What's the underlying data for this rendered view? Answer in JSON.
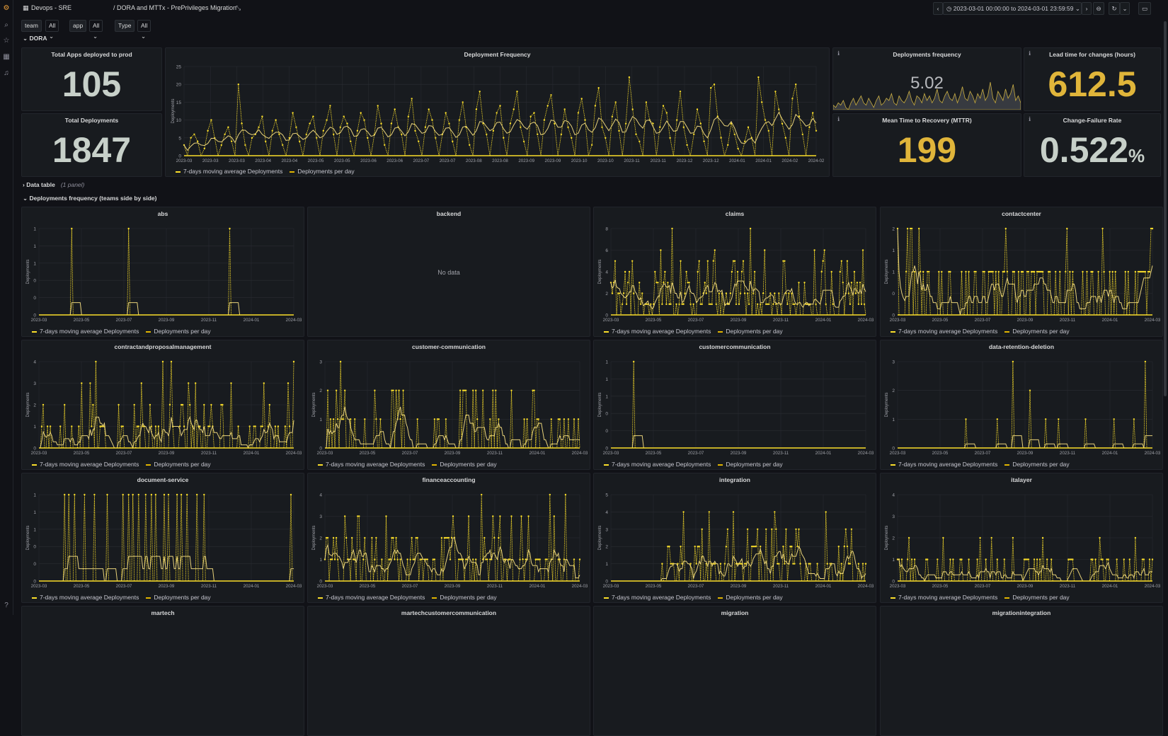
{
  "breadcrumb": {
    "folder": "Devops - SRE",
    "dashboard": "/ DORA and MTTx - PrePrivileges Migration"
  },
  "time_range": "2023-03-01 00:00:00 to 2024-03-01 23:59:59",
  "variables": [
    {
      "label": "team",
      "value": "All"
    },
    {
      "label": "app",
      "value": "All"
    },
    {
      "label": "Type",
      "value": "All"
    }
  ],
  "rows": {
    "dora": "DORA",
    "data_table": "Data table",
    "data_table_meta": "(1 panel)",
    "teams": "Deployments frequency (teams side by side)"
  },
  "stats": {
    "total_apps": {
      "title": "Total Apps deployed to prod",
      "value": "105",
      "color": "#c7d0c9"
    },
    "total_deployments": {
      "title": "Total Deployments",
      "value": "1847",
      "color": "#c7d0c9"
    },
    "deploy_freq": {
      "title": "Deployments frequency",
      "value": "5.02"
    },
    "lead_time": {
      "title": "Lead time for changes (hours)",
      "value": "612.5",
      "color": "#e0b53a"
    },
    "mttr": {
      "title": "Mean Time to Recovery (MTTR)",
      "value": "199",
      "color": "#e0b53a"
    },
    "cfr": {
      "title": "Change-Failure Rate",
      "value": "0.522",
      "unit": "%",
      "color": "#c7d0c9"
    }
  },
  "legend": {
    "avg": "7-days moving average Deployments",
    "per_day": "Deployments per day"
  },
  "no_data": "No data",
  "colors": {
    "series": "#fade2a",
    "avg": "#e8d27a",
    "grid": "#2a2d33",
    "tick": "#9fa1a8"
  },
  "chart_data": [
    {
      "type": "line",
      "title": "Deployment Frequency",
      "ylabel": "Deployments",
      "ylim": [
        0,
        25
      ],
      "yticks": [
        0,
        5,
        10,
        15,
        20,
        25
      ],
      "xticks": [
        "2023-03",
        "2023-03",
        "2023-03",
        "2023-04",
        "2023-04",
        "2023-05",
        "2023-05",
        "2023-06",
        "2023-06",
        "2023-07",
        "2023-07",
        "2023-08",
        "2023-08",
        "2023-09",
        "2023-09",
        "2023-10",
        "2023-10",
        "2023-11",
        "2023-11",
        "2023-12",
        "2023-12",
        "2024-01",
        "2024-01",
        "2024-02",
        "2024-02"
      ],
      "series": [
        {
          "name": "7-days moving average Deployments"
        },
        {
          "name": "Deployments per day",
          "values": [
            3,
            0,
            5,
            6,
            4,
            0,
            2,
            7,
            10,
            5,
            0,
            3,
            6,
            8,
            4,
            0,
            20,
            9,
            3,
            0,
            5,
            6,
            8,
            11,
            4,
            0,
            7,
            10,
            6,
            3,
            0,
            5,
            12,
            8,
            4,
            0,
            6,
            9,
            11,
            5,
            0,
            7,
            10,
            14,
            6,
            0,
            8,
            11,
            9,
            4,
            0,
            7,
            12,
            10,
            5,
            0,
            6,
            14,
            9,
            3,
            0,
            9,
            13,
            8,
            6,
            0,
            11,
            16,
            7,
            4,
            0,
            8,
            13,
            10,
            5,
            0,
            6,
            12,
            9,
            4,
            0,
            10,
            15,
            8,
            3,
            0,
            13,
            18,
            9,
            6,
            0,
            7,
            12,
            14,
            5,
            0,
            9,
            13,
            18,
            8,
            4,
            0,
            11,
            12,
            6,
            0,
            10,
            14,
            17,
            9,
            0,
            6,
            13,
            8,
            5,
            0,
            12,
            16,
            10,
            0,
            3,
            14,
            19,
            8,
            5,
            0,
            11,
            15,
            7,
            0,
            9,
            22,
            13,
            6,
            4,
            0,
            15,
            10,
            9,
            0,
            8,
            14,
            12,
            5,
            0,
            10,
            18,
            8,
            3,
            0,
            6,
            13,
            9,
            4,
            0,
            19,
            20,
            11,
            5,
            0,
            3,
            9,
            6,
            2,
            0,
            4,
            8,
            5,
            0,
            22,
            15,
            10,
            7,
            0,
            18,
            13,
            9,
            5,
            0,
            16,
            20,
            11,
            6,
            0,
            8,
            12,
            7
          ]
        }
      ]
    },
    {
      "type": "line",
      "title": "Deployments frequency",
      "sparkline": true,
      "values": [
        2,
        1,
        3,
        2,
        4,
        1,
        0,
        3,
        5,
        2,
        4,
        6,
        3,
        2,
        5,
        3,
        1,
        4,
        6,
        2,
        3,
        5,
        4,
        7,
        3,
        2,
        6,
        4,
        3,
        5,
        8,
        4,
        2,
        6,
        5,
        3,
        7,
        4,
        6,
        3,
        5,
        9,
        4,
        3,
        6,
        8,
        5,
        4,
        7,
        3,
        6,
        10,
        5,
        4,
        8,
        6,
        3,
        7,
        5,
        9,
        4,
        6,
        12,
        5,
        3,
        8,
        6,
        4,
        9,
        5,
        7,
        11,
        4,
        6,
        3
      ]
    },
    {
      "type": "line",
      "title": "abs",
      "ylim": [
        0,
        1
      ],
      "yticks": [
        0,
        0.2,
        0.4,
        0.6,
        0.8,
        1
      ],
      "yticklabels": [
        "0",
        "0",
        "0",
        "1",
        "1",
        "1"
      ],
      "xticks": [
        "2023-03",
        "2023-05",
        "2023-07",
        "2023-09",
        "2023-11",
        "2024-01",
        "2024-03"
      ],
      "spikes": [
        [
          0.13,
          1
        ],
        [
          0.35,
          1
        ],
        [
          0.75,
          1
        ]
      ]
    },
    {
      "type": "line",
      "title": "backend",
      "nodata": true
    },
    {
      "type": "line",
      "title": "claims",
      "ylim": [
        0,
        8
      ],
      "yticks": [
        0,
        2,
        4,
        6,
        8
      ],
      "xticks": [
        "2023-03",
        "2023-05",
        "2023-07",
        "2023-09",
        "2023-11",
        "2024-01",
        "2024-03"
      ],
      "density": 0.75,
      "maxv": 8,
      "seed": 11
    },
    {
      "type": "line",
      "title": "contactcenter",
      "ylim": [
        0,
        2
      ],
      "yticks": [
        0,
        0.5,
        1,
        1.5,
        2
      ],
      "yticklabels": [
        "0",
        "0",
        "1",
        "1",
        "2"
      ],
      "xticks": [
        "2023-03",
        "2023-05",
        "2023-07",
        "2023-09",
        "2023-11",
        "2024-01",
        "2024-03"
      ],
      "density": 0.45,
      "maxv": 2,
      "seed": 23
    },
    {
      "type": "line",
      "title": "contractandproposalmanagement",
      "ylim": [
        0,
        4
      ],
      "yticks": [
        0,
        1,
        2,
        3,
        4
      ],
      "xticks": [
        "2023-03",
        "2023-05",
        "2023-07",
        "2023-09",
        "2023-11",
        "2024-01",
        "2024-03"
      ],
      "density": 0.35,
      "maxv": 4,
      "seed": 31
    },
    {
      "type": "line",
      "title": "customer-communication",
      "ylim": [
        0,
        3
      ],
      "yticks": [
        0,
        1,
        2,
        3
      ],
      "xticks": [
        "2023-03",
        "2023-05",
        "2023-07",
        "2023-09",
        "2023-11",
        "2024-01",
        "2024-03"
      ],
      "density": 0.35,
      "maxv": 3,
      "seed": 41
    },
    {
      "type": "line",
      "title": "customercommunication",
      "ylim": [
        0,
        1
      ],
      "yticks": [
        0,
        0.2,
        0.4,
        0.6,
        0.8,
        1
      ],
      "yticklabels": [
        "0",
        "0",
        "0",
        "1",
        "1",
        "1"
      ],
      "xticks": [
        "2023-03",
        "2023-05",
        "2023-07",
        "2023-09",
        "2023-11",
        "2024-01",
        "2024-03"
      ],
      "spikes": [
        [
          0.09,
          1
        ]
      ]
    },
    {
      "type": "line",
      "title": "data-retention-deletion",
      "ylim": [
        0,
        3
      ],
      "yticks": [
        0,
        1,
        2,
        3
      ],
      "xticks": [
        "2023-03",
        "2023-05",
        "2023-07",
        "2023-09",
        "2023-11",
        "2024-01",
        "2024-03"
      ],
      "spikes": [
        [
          0.27,
          1
        ],
        [
          0.39,
          1
        ],
        [
          0.45,
          3
        ],
        [
          0.52,
          2
        ],
        [
          0.58,
          1
        ],
        [
          0.63,
          1
        ],
        [
          0.74,
          1
        ],
        [
          0.85,
          1
        ],
        [
          0.93,
          1
        ],
        [
          0.97,
          3
        ]
      ]
    },
    {
      "type": "line",
      "title": "document-service",
      "ylim": [
        0,
        1
      ],
      "yticks": [
        0,
        0.2,
        0.4,
        0.6,
        0.8,
        1
      ],
      "yticklabels": [
        "0",
        "0",
        "0",
        "1",
        "1",
        "1"
      ],
      "xticks": [
        "2023-03",
        "2023-05",
        "2023-07",
        "2023-09",
        "2023-11",
        "2024-01",
        "2024-03"
      ],
      "spikes": [
        [
          0.1,
          1
        ],
        [
          0.12,
          1
        ],
        [
          0.14,
          1
        ],
        [
          0.18,
          1
        ],
        [
          0.22,
          1
        ],
        [
          0.27,
          1
        ],
        [
          0.33,
          1
        ],
        [
          0.35,
          1
        ],
        [
          0.37,
          1
        ],
        [
          0.39,
          1
        ],
        [
          0.42,
          1
        ],
        [
          0.44,
          1
        ],
        [
          0.46,
          1
        ],
        [
          0.49,
          1
        ],
        [
          0.51,
          1
        ],
        [
          0.54,
          1
        ],
        [
          0.56,
          1
        ],
        [
          0.58,
          1
        ],
        [
          0.62,
          1
        ],
        [
          0.65,
          1
        ],
        [
          0.99,
          1
        ]
      ]
    },
    {
      "type": "line",
      "title": "financeaccounting",
      "ylim": [
        0,
        4
      ],
      "yticks": [
        0,
        1,
        2,
        3,
        4
      ],
      "xticks": [
        "2023-03",
        "2023-05",
        "2023-07",
        "2023-09",
        "2023-11",
        "2024-01",
        "2024-03"
      ],
      "density": 0.55,
      "maxv": 4,
      "seed": 53
    },
    {
      "type": "line",
      "title": "integration",
      "ylim": [
        0,
        5
      ],
      "yticks": [
        0,
        1,
        2,
        3,
        4,
        5
      ],
      "xticks": [
        "2023-03",
        "2023-05",
        "2023-07",
        "2023-09",
        "2023-11",
        "2024-01",
        "2024-03"
      ],
      "density": 0.55,
      "maxv": 5,
      "seed": 67,
      "start": 0.18
    },
    {
      "type": "line",
      "title": "italayer",
      "ylim": [
        0,
        4
      ],
      "yticks": [
        0,
        1,
        2,
        3,
        4
      ],
      "xticks": [
        "2023-03",
        "2023-05",
        "2023-07",
        "2023-09",
        "2023-11",
        "2024-01",
        "2024-03"
      ],
      "density": 0.25,
      "maxv": 2,
      "seed": 71
    },
    {
      "type": "line",
      "title": "martech",
      "partial": true
    },
    {
      "type": "line",
      "title": "martechcustomercommunication",
      "partial": true
    },
    {
      "type": "line",
      "title": "migration",
      "partial": true
    },
    {
      "type": "line",
      "title": "migrationintegration",
      "partial": true
    }
  ]
}
